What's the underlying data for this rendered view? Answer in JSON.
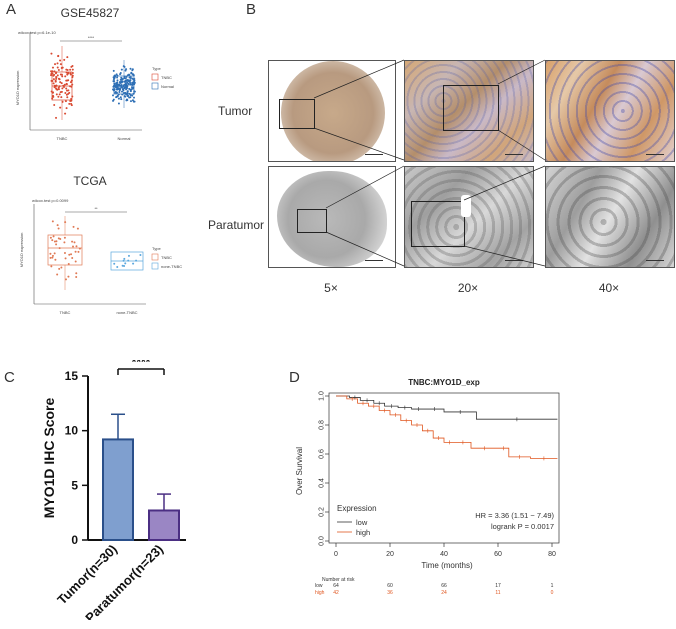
{
  "panels": {
    "A": "A",
    "B": "B",
    "C": "C",
    "D": "D"
  },
  "panelA": {
    "top": {
      "title": "GSE45827",
      "test": "wilcox.test p=6.1e-10",
      "sig": "****",
      "ylabel": "MYO1D expression",
      "legend_title": "Type",
      "legend": [
        "TNBC",
        "Normal"
      ],
      "xticks": [
        "TNBC",
        "Normal"
      ],
      "colors": {
        "TNBC": "#d94a32",
        "Normal": "#2e6fb5"
      }
    },
    "bottom": {
      "title": "TCGA",
      "test": "wilcox.test p=0.0099",
      "sig": "**",
      "ylabel": "MYO1D expression",
      "legend_title": "Type",
      "legend": [
        "TNBC",
        "none-TNBC"
      ],
      "xticks": [
        "TNBC",
        "none-TNBC"
      ],
      "colors": {
        "TNBC": "#e07a55",
        "none-TNBC": "#5aa7dd"
      }
    }
  },
  "panelB": {
    "rows": [
      "Tumor",
      "Paratumor"
    ],
    "magnifications": [
      "5×",
      "20×",
      "40×"
    ],
    "colors": {
      "tumor_stain": "#c9935a",
      "counterstain": "#4a58a8",
      "paratumor": "#9a9a9a"
    }
  },
  "chart_data": [
    {
      "type": "bar",
      "panel": "C",
      "categories": [
        "Tumor(n=30)",
        "Paratumor(n=23)"
      ],
      "values": [
        9.2,
        2.7
      ],
      "errors": [
        2.3,
        1.5
      ],
      "ylabel": "MYO1D IHC Score",
      "ylim": [
        0,
        15
      ],
      "yticks": [
        "0",
        "5",
        "10",
        "15"
      ],
      "significance": "****",
      "colors": {
        "Tumor(n=30)": "#7f9fcf",
        "Paratumor(n=23)": "#9a86c4",
        "edge_tumor": "#2a4f8a",
        "edge_paratumor": "#4b2f83"
      }
    },
    {
      "type": "line",
      "panel": "D",
      "title": "TNBC:MYO1D_exp",
      "xlabel": "Time (months)",
      "ylabel": "Over Survival",
      "xlim": [
        0,
        80
      ],
      "ylim": [
        0,
        1
      ],
      "xticks": [
        "0",
        "20",
        "40",
        "60",
        "80"
      ],
      "yticks": [
        "0.0",
        "0.2",
        "0.4",
        "0.6",
        "0.8",
        "1.0"
      ],
      "legend_title": "Expression",
      "series": [
        {
          "name": "low",
          "color": "#333333",
          "x": [
            0,
            5,
            9,
            14,
            18,
            23,
            28,
            33,
            40,
            52,
            82
          ],
          "y": [
            1.0,
            0.99,
            0.97,
            0.95,
            0.93,
            0.92,
            0.91,
            0.91,
            0.89,
            0.84,
            0.84
          ]
        },
        {
          "name": "high",
          "color": "#e0561f",
          "x": [
            0,
            4,
            8,
            12,
            16,
            20,
            24,
            28,
            32,
            36,
            40,
            44,
            50,
            60,
            64,
            72,
            82
          ],
          "y": [
            1.0,
            0.98,
            0.95,
            0.93,
            0.9,
            0.87,
            0.83,
            0.8,
            0.76,
            0.71,
            0.68,
            0.68,
            0.64,
            0.64,
            0.58,
            0.57,
            0.57
          ]
        }
      ],
      "hr_text": "HR = 3.36 (1.51 − 7.49)",
      "logrank_text": "logrank P = 0.0017",
      "risk_table": {
        "header": "Number at risk",
        "rows": [
          {
            "label": "low",
            "values": [
              "64",
              "60",
              "66",
              "17",
              "1"
            ],
            "color": "#333333"
          },
          {
            "label": "high",
            "values": [
              "42",
              "36",
              "24",
              "11",
              "0"
            ],
            "color": "#e0561f"
          }
        ]
      }
    }
  ]
}
